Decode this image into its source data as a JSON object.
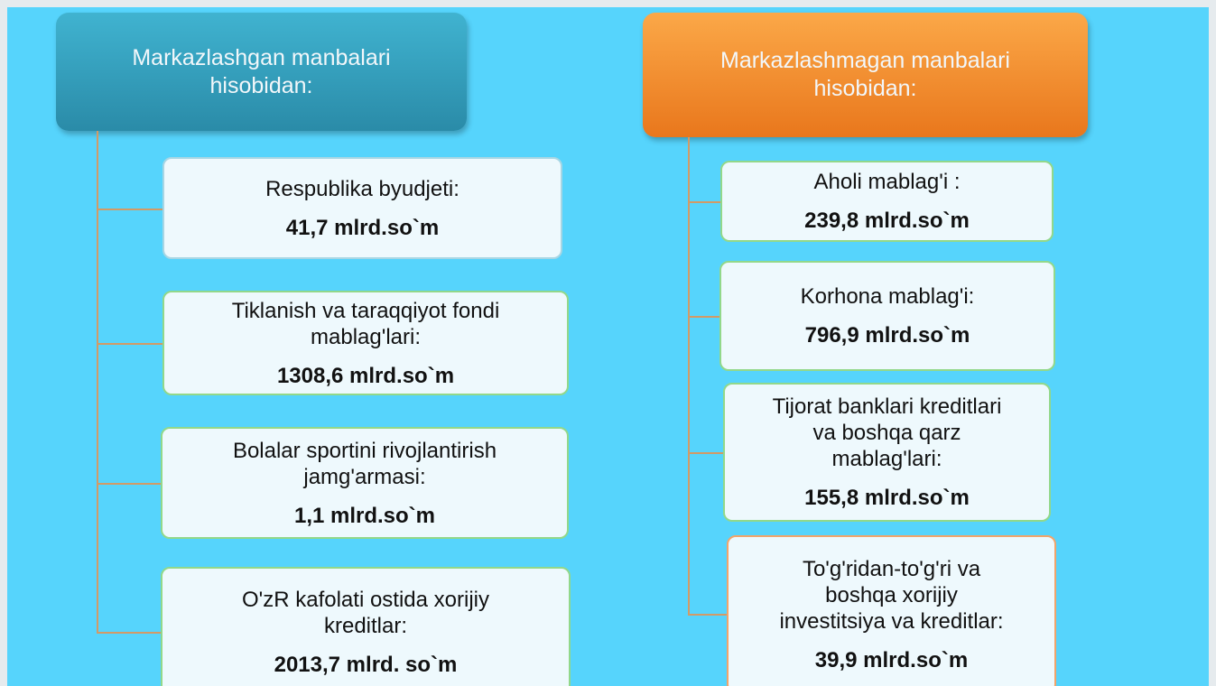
{
  "columns": [
    {
      "header": [
        "Markazlashgan manbalari",
        "hisobidan:"
      ],
      "items": [
        {
          "label": [
            "Respublika byudjeti:"
          ],
          "value": "41,7 mlrd.so`m"
        },
        {
          "label": [
            "Tiklanish va taraqqiyot fondi",
            "mablag'lari:"
          ],
          "value": "1308,6 mlrd.so`m"
        },
        {
          "label": [
            "Bolalar sportini rivojlantirish",
            "jamg'armasi:"
          ],
          "value": "1,1 mlrd.so`m"
        },
        {
          "label": [
            "O'zR kafolati ostida xorijiy",
            "kreditlar:"
          ],
          "value": "2013,7 mlrd. so`m"
        }
      ]
    },
    {
      "header": [
        "Markazlashmagan manbalari",
        "hisobidan:"
      ],
      "items": [
        {
          "label": [
            "Aholi mablag'i :"
          ],
          "value": "239,8 mlrd.so`m"
        },
        {
          "label": [
            "Korhona mablag'i:"
          ],
          "value": "796,9 mlrd.so`m"
        },
        {
          "label": [
            "Tijorat banklari kreditlari",
            "va boshqa qarz",
            "mablag'lari:"
          ],
          "value": "155,8 mlrd.so`m"
        },
        {
          "label": [
            "To'g'ridan-to'g'ri va",
            "boshqa xorijiy",
            "investitsiya va kreditlar:"
          ],
          "value": "39,9 mlrd.so`m"
        }
      ]
    }
  ]
}
